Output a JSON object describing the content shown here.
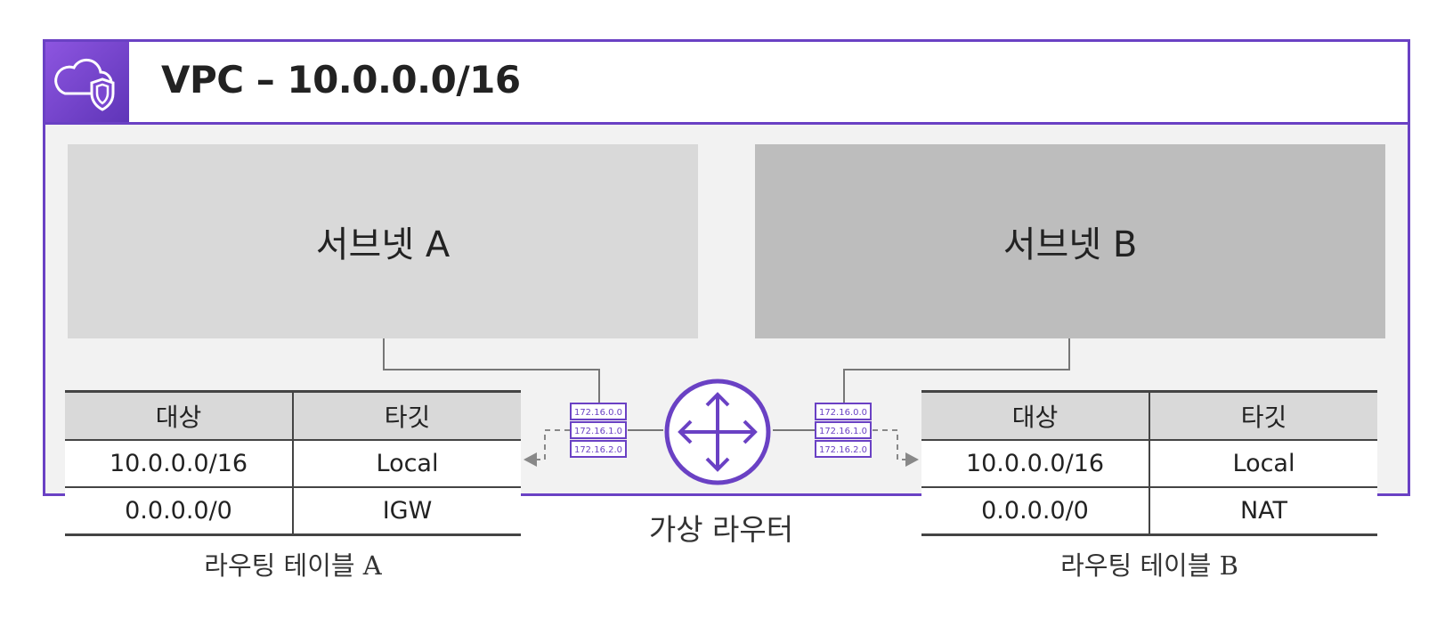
{
  "vpc": {
    "title": "VPC – 10.0.0.0/16",
    "icon": "cloud-shield-icon",
    "accent_color": "#6a41c4"
  },
  "subnets": [
    {
      "label": "서브넷 A",
      "color": "#d9d9d9"
    },
    {
      "label": "서브넷 B",
      "color": "#bdbdbd"
    }
  ],
  "route_tables": [
    {
      "caption": "라우팅 테이블 A",
      "headers": [
        "대상",
        "타깃"
      ],
      "rows": [
        [
          "10.0.0.0/16",
          "Local"
        ],
        [
          "0.0.0.0/0",
          "IGW"
        ]
      ]
    },
    {
      "caption": "라우팅 테이블 B",
      "headers": [
        "대상",
        "타깃"
      ],
      "rows": [
        [
          "10.0.0.0/16",
          "Local"
        ],
        [
          "0.0.0.0/0",
          "NAT"
        ]
      ]
    }
  ],
  "router": {
    "label": "가상 라우터",
    "icon": "router-icon",
    "table_entries": [
      "172.16.0.0",
      "172.16.1.0",
      "172.16.2.0"
    ]
  }
}
